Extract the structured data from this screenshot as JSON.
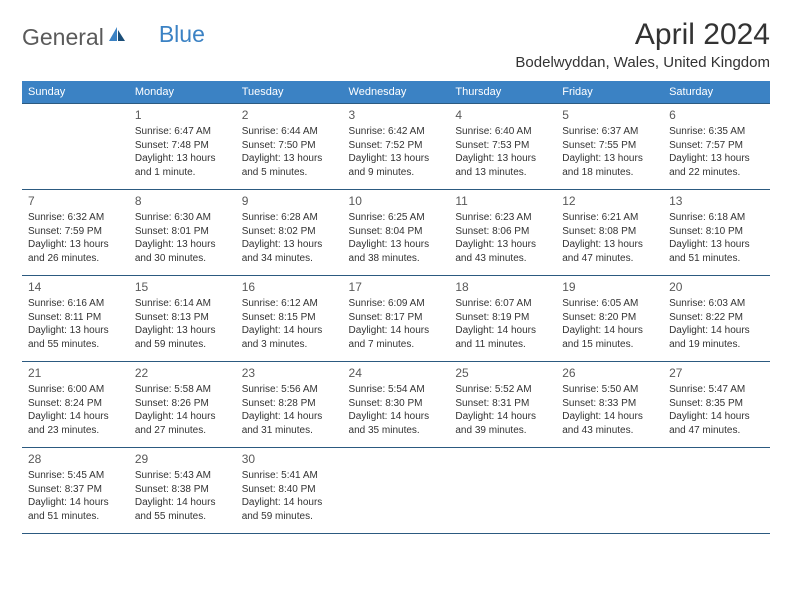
{
  "brand": {
    "word1": "General",
    "word2": "Blue"
  },
  "title": "April 2024",
  "location": "Bodelwyddan, Wales, United Kingdom",
  "colors": {
    "header_bg": "#3b82c4",
    "header_text": "#ffffff",
    "border": "#2c5a80",
    "text": "#333333",
    "daynum": "#595959",
    "logo_gray": "#5a5a5a",
    "logo_blue": "#3b82c4"
  },
  "weekdays": [
    "Sunday",
    "Monday",
    "Tuesday",
    "Wednesday",
    "Thursday",
    "Friday",
    "Saturday"
  ],
  "weeks": [
    [
      null,
      {
        "d": "1",
        "sr": "Sunrise: 6:47 AM",
        "ss": "Sunset: 7:48 PM",
        "dl1": "Daylight: 13 hours",
        "dl2": "and 1 minute."
      },
      {
        "d": "2",
        "sr": "Sunrise: 6:44 AM",
        "ss": "Sunset: 7:50 PM",
        "dl1": "Daylight: 13 hours",
        "dl2": "and 5 minutes."
      },
      {
        "d": "3",
        "sr": "Sunrise: 6:42 AM",
        "ss": "Sunset: 7:52 PM",
        "dl1": "Daylight: 13 hours",
        "dl2": "and 9 minutes."
      },
      {
        "d": "4",
        "sr": "Sunrise: 6:40 AM",
        "ss": "Sunset: 7:53 PM",
        "dl1": "Daylight: 13 hours",
        "dl2": "and 13 minutes."
      },
      {
        "d": "5",
        "sr": "Sunrise: 6:37 AM",
        "ss": "Sunset: 7:55 PM",
        "dl1": "Daylight: 13 hours",
        "dl2": "and 18 minutes."
      },
      {
        "d": "6",
        "sr": "Sunrise: 6:35 AM",
        "ss": "Sunset: 7:57 PM",
        "dl1": "Daylight: 13 hours",
        "dl2": "and 22 minutes."
      }
    ],
    [
      {
        "d": "7",
        "sr": "Sunrise: 6:32 AM",
        "ss": "Sunset: 7:59 PM",
        "dl1": "Daylight: 13 hours",
        "dl2": "and 26 minutes."
      },
      {
        "d": "8",
        "sr": "Sunrise: 6:30 AM",
        "ss": "Sunset: 8:01 PM",
        "dl1": "Daylight: 13 hours",
        "dl2": "and 30 minutes."
      },
      {
        "d": "9",
        "sr": "Sunrise: 6:28 AM",
        "ss": "Sunset: 8:02 PM",
        "dl1": "Daylight: 13 hours",
        "dl2": "and 34 minutes."
      },
      {
        "d": "10",
        "sr": "Sunrise: 6:25 AM",
        "ss": "Sunset: 8:04 PM",
        "dl1": "Daylight: 13 hours",
        "dl2": "and 38 minutes."
      },
      {
        "d": "11",
        "sr": "Sunrise: 6:23 AM",
        "ss": "Sunset: 8:06 PM",
        "dl1": "Daylight: 13 hours",
        "dl2": "and 43 minutes."
      },
      {
        "d": "12",
        "sr": "Sunrise: 6:21 AM",
        "ss": "Sunset: 8:08 PM",
        "dl1": "Daylight: 13 hours",
        "dl2": "and 47 minutes."
      },
      {
        "d": "13",
        "sr": "Sunrise: 6:18 AM",
        "ss": "Sunset: 8:10 PM",
        "dl1": "Daylight: 13 hours",
        "dl2": "and 51 minutes."
      }
    ],
    [
      {
        "d": "14",
        "sr": "Sunrise: 6:16 AM",
        "ss": "Sunset: 8:11 PM",
        "dl1": "Daylight: 13 hours",
        "dl2": "and 55 minutes."
      },
      {
        "d": "15",
        "sr": "Sunrise: 6:14 AM",
        "ss": "Sunset: 8:13 PM",
        "dl1": "Daylight: 13 hours",
        "dl2": "and 59 minutes."
      },
      {
        "d": "16",
        "sr": "Sunrise: 6:12 AM",
        "ss": "Sunset: 8:15 PM",
        "dl1": "Daylight: 14 hours",
        "dl2": "and 3 minutes."
      },
      {
        "d": "17",
        "sr": "Sunrise: 6:09 AM",
        "ss": "Sunset: 8:17 PM",
        "dl1": "Daylight: 14 hours",
        "dl2": "and 7 minutes."
      },
      {
        "d": "18",
        "sr": "Sunrise: 6:07 AM",
        "ss": "Sunset: 8:19 PM",
        "dl1": "Daylight: 14 hours",
        "dl2": "and 11 minutes."
      },
      {
        "d": "19",
        "sr": "Sunrise: 6:05 AM",
        "ss": "Sunset: 8:20 PM",
        "dl1": "Daylight: 14 hours",
        "dl2": "and 15 minutes."
      },
      {
        "d": "20",
        "sr": "Sunrise: 6:03 AM",
        "ss": "Sunset: 8:22 PM",
        "dl1": "Daylight: 14 hours",
        "dl2": "and 19 minutes."
      }
    ],
    [
      {
        "d": "21",
        "sr": "Sunrise: 6:00 AM",
        "ss": "Sunset: 8:24 PM",
        "dl1": "Daylight: 14 hours",
        "dl2": "and 23 minutes."
      },
      {
        "d": "22",
        "sr": "Sunrise: 5:58 AM",
        "ss": "Sunset: 8:26 PM",
        "dl1": "Daylight: 14 hours",
        "dl2": "and 27 minutes."
      },
      {
        "d": "23",
        "sr": "Sunrise: 5:56 AM",
        "ss": "Sunset: 8:28 PM",
        "dl1": "Daylight: 14 hours",
        "dl2": "and 31 minutes."
      },
      {
        "d": "24",
        "sr": "Sunrise: 5:54 AM",
        "ss": "Sunset: 8:30 PM",
        "dl1": "Daylight: 14 hours",
        "dl2": "and 35 minutes."
      },
      {
        "d": "25",
        "sr": "Sunrise: 5:52 AM",
        "ss": "Sunset: 8:31 PM",
        "dl1": "Daylight: 14 hours",
        "dl2": "and 39 minutes."
      },
      {
        "d": "26",
        "sr": "Sunrise: 5:50 AM",
        "ss": "Sunset: 8:33 PM",
        "dl1": "Daylight: 14 hours",
        "dl2": "and 43 minutes."
      },
      {
        "d": "27",
        "sr": "Sunrise: 5:47 AM",
        "ss": "Sunset: 8:35 PM",
        "dl1": "Daylight: 14 hours",
        "dl2": "and 47 minutes."
      }
    ],
    [
      {
        "d": "28",
        "sr": "Sunrise: 5:45 AM",
        "ss": "Sunset: 8:37 PM",
        "dl1": "Daylight: 14 hours",
        "dl2": "and 51 minutes."
      },
      {
        "d": "29",
        "sr": "Sunrise: 5:43 AM",
        "ss": "Sunset: 8:38 PM",
        "dl1": "Daylight: 14 hours",
        "dl2": "and 55 minutes."
      },
      {
        "d": "30",
        "sr": "Sunrise: 5:41 AM",
        "ss": "Sunset: 8:40 PM",
        "dl1": "Daylight: 14 hours",
        "dl2": "and 59 minutes."
      },
      null,
      null,
      null,
      null
    ]
  ]
}
